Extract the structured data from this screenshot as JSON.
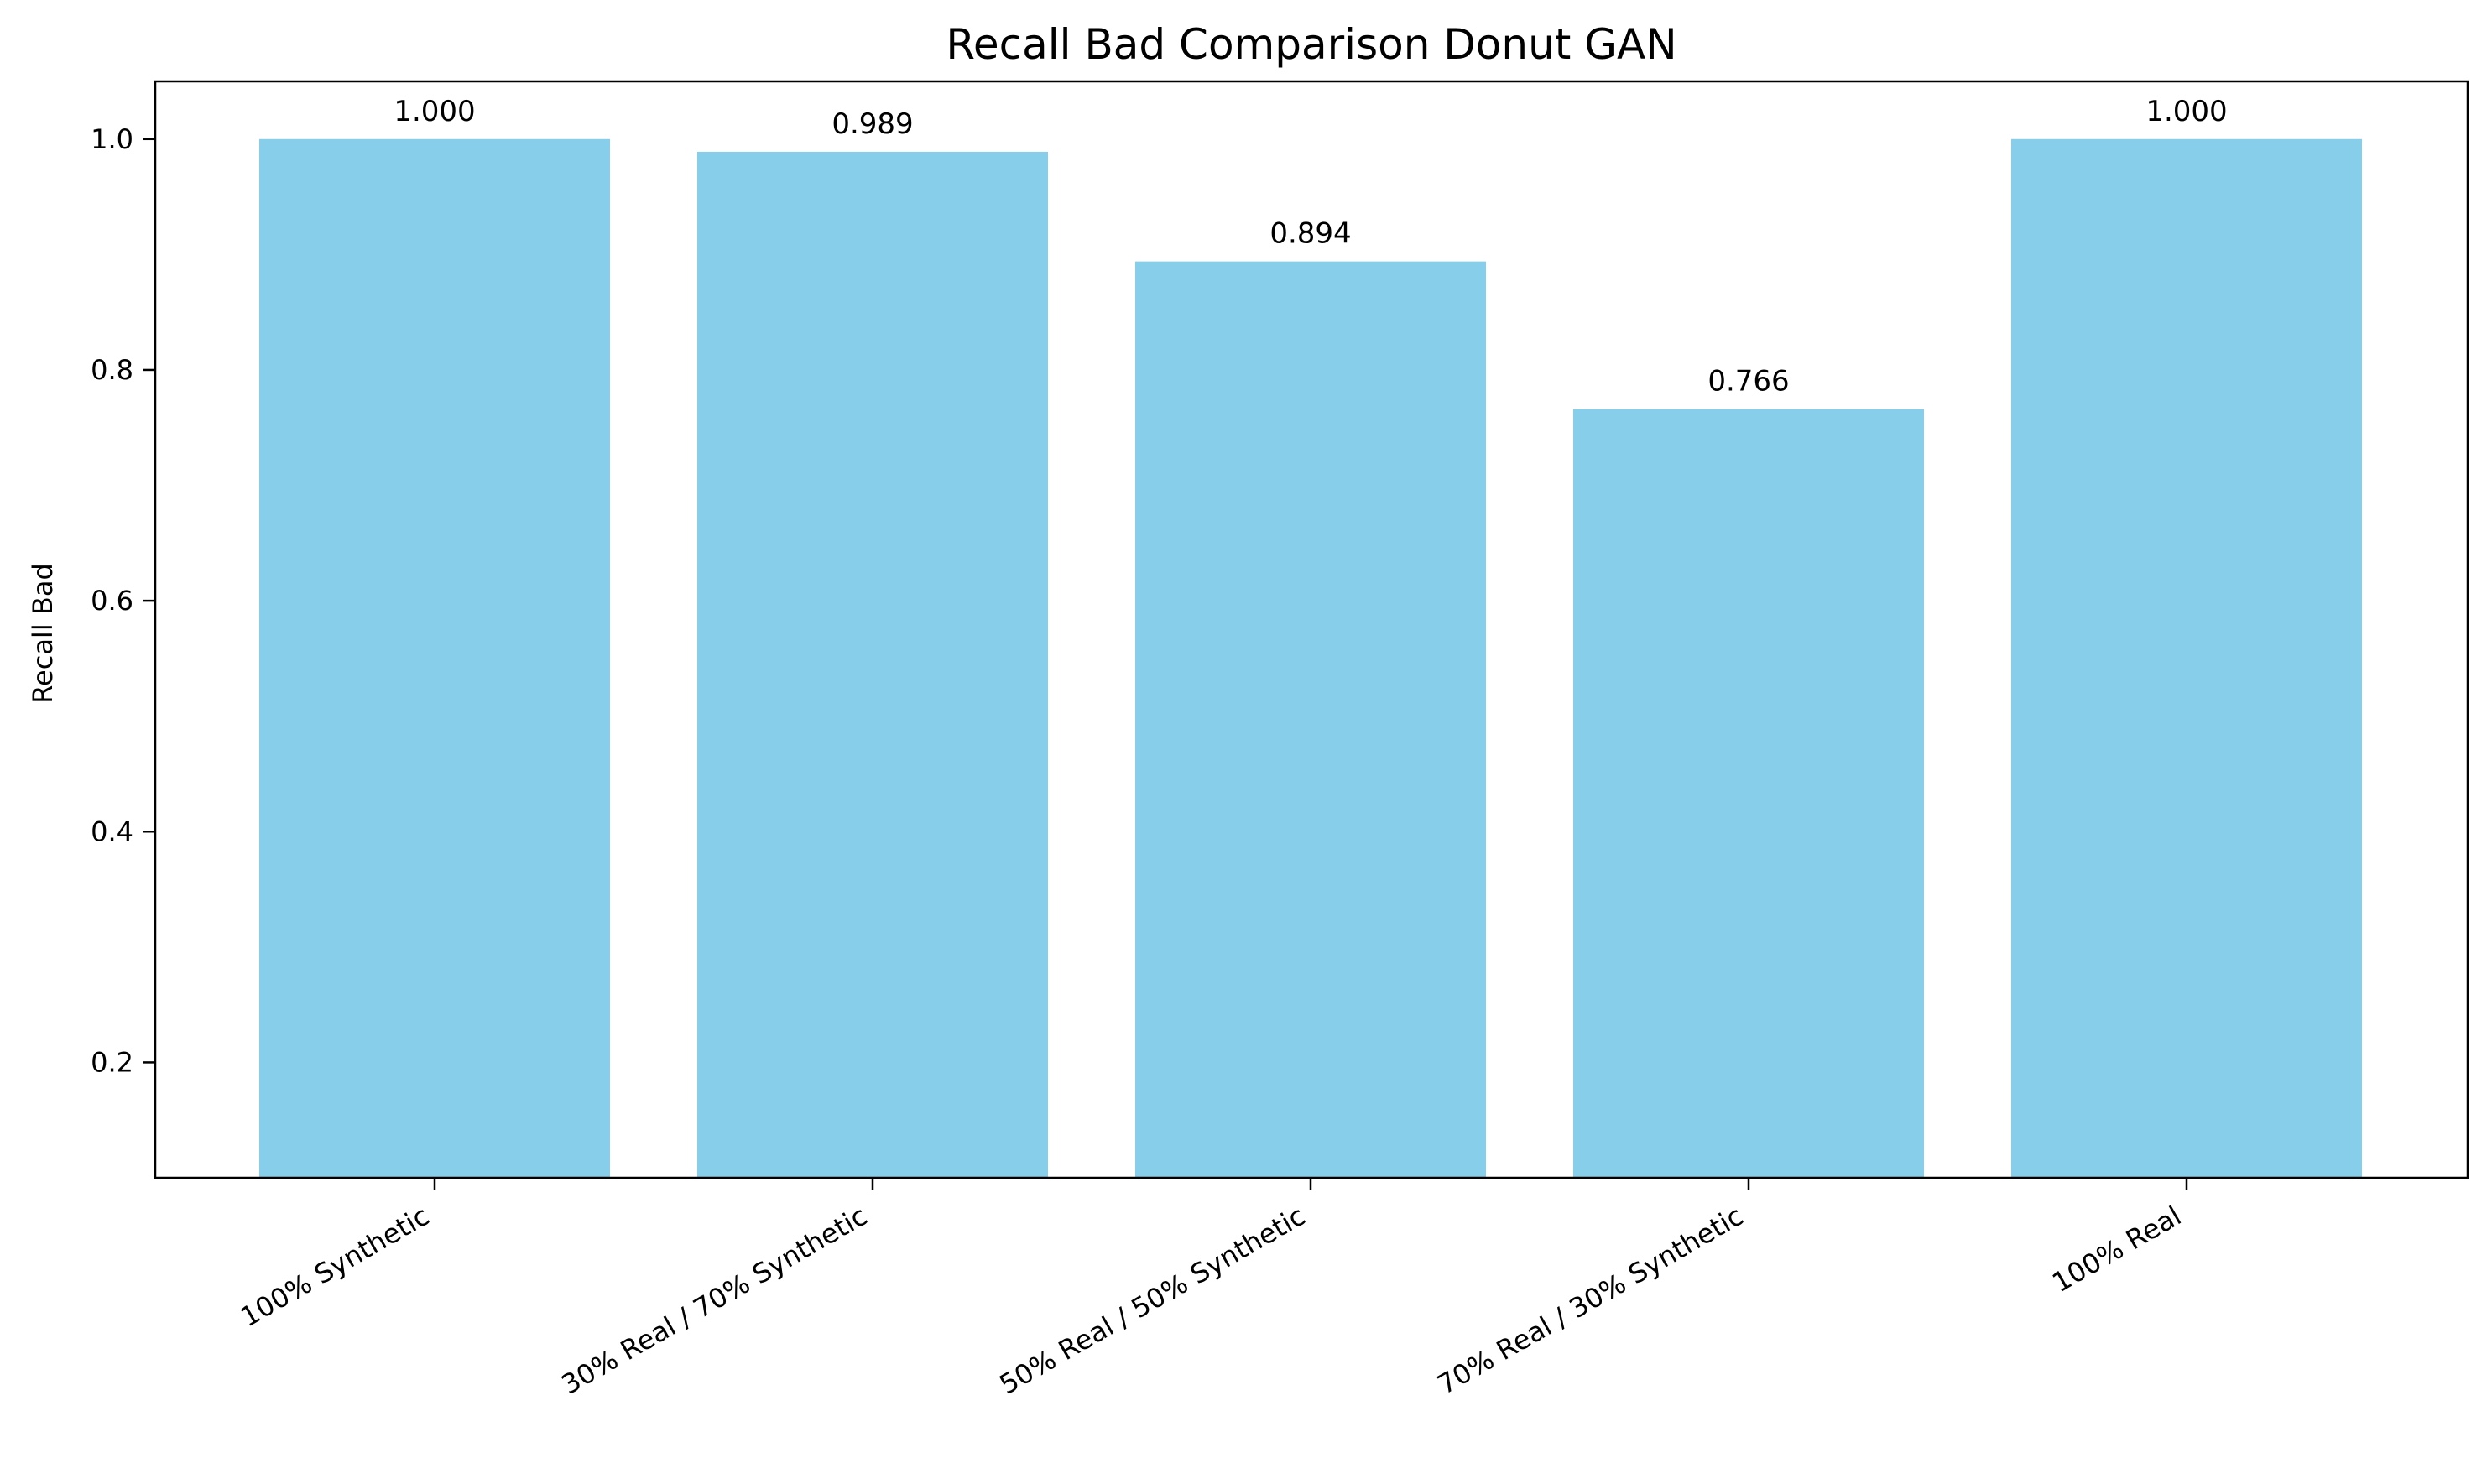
{
  "chart_data": {
    "type": "bar",
    "title": "Recall Bad Comparison Donut GAN",
    "xlabel": "",
    "ylabel": "Recall Bad",
    "categories": [
      "100% Synthetic",
      "30% Real / 70% Synthetic",
      "50% Real / 50% Synthetic",
      "70% Real / 30% Synthetic",
      "100% Real"
    ],
    "values": [
      1.0,
      0.989,
      0.894,
      0.766,
      1.0
    ],
    "value_labels": [
      "1.000",
      "0.989",
      "0.894",
      "0.766",
      "1.000"
    ],
    "ylim": [
      0.1,
      1.05
    ],
    "yticks": [
      0.2,
      0.4,
      0.6,
      0.8,
      1.0
    ],
    "ytick_labels": [
      "0.2",
      "0.4",
      "0.6",
      "0.8",
      "1.0"
    ],
    "bar_color": "#87CEEB",
    "grid": false,
    "legend": "none"
  }
}
